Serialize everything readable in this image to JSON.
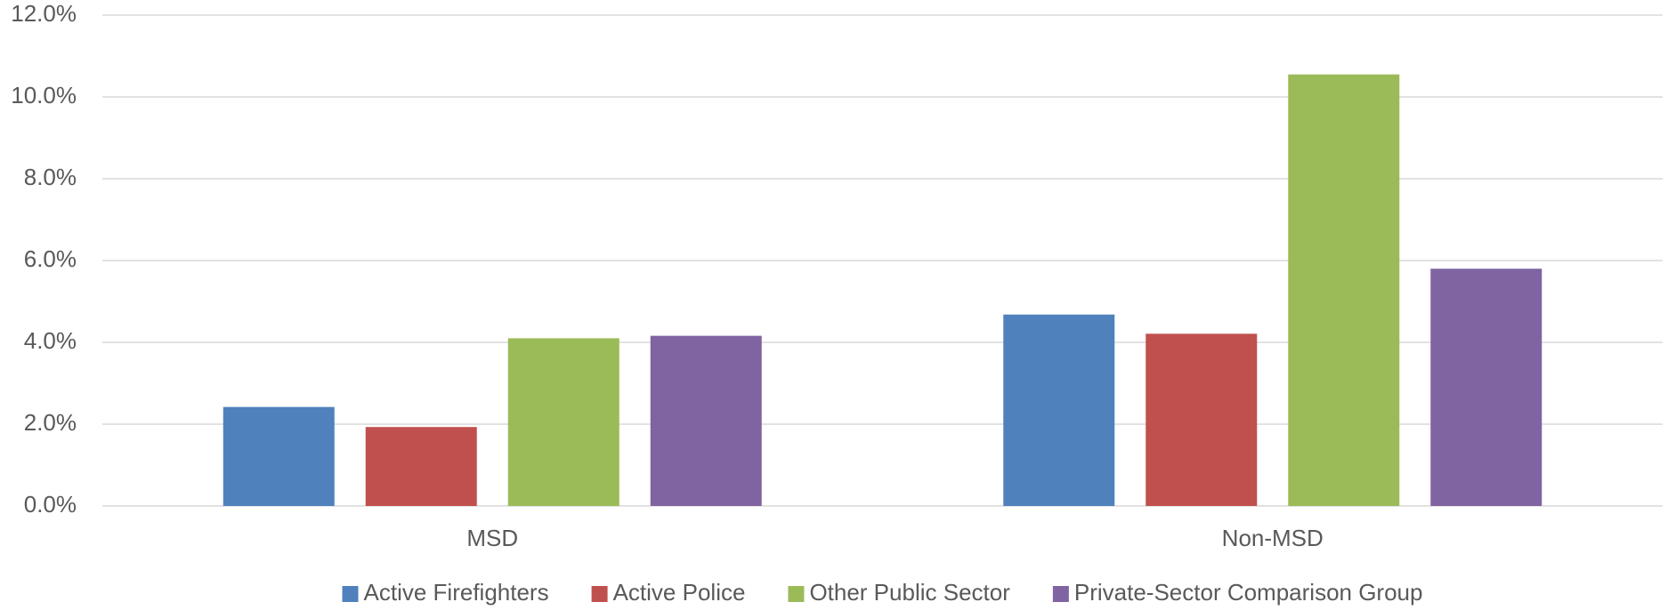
{
  "chart_data": {
    "type": "bar",
    "categories": [
      "MSD",
      "Non-MSD"
    ],
    "series": [
      {
        "name": "Active Firefighters",
        "color": "#4f81bd",
        "values": [
          2.42,
          4.68
        ]
      },
      {
        "name": "Active Police",
        "color": "#c0504d",
        "values": [
          1.93,
          4.21
        ]
      },
      {
        "name": "Other Public Sector",
        "color": "#9bbb59",
        "values": [
          4.1,
          10.55
        ]
      },
      {
        "name": "Private-Sector Comparison Group",
        "color": "#8064a2",
        "values": [
          4.16,
          5.8
        ]
      }
    ],
    "ylim": [
      0,
      12
    ],
    "yticks": [
      {
        "value": 0,
        "label": "0.0%"
      },
      {
        "value": 2,
        "label": "2.0%"
      },
      {
        "value": 4,
        "label": "4.0%"
      },
      {
        "value": 6,
        "label": "6.0%"
      },
      {
        "value": 8,
        "label": "8.0%"
      },
      {
        "value": 10,
        "label": "10.0%"
      },
      {
        "value": 12,
        "label": "12.0%"
      }
    ],
    "grid": true,
    "legend": "bottom"
  }
}
